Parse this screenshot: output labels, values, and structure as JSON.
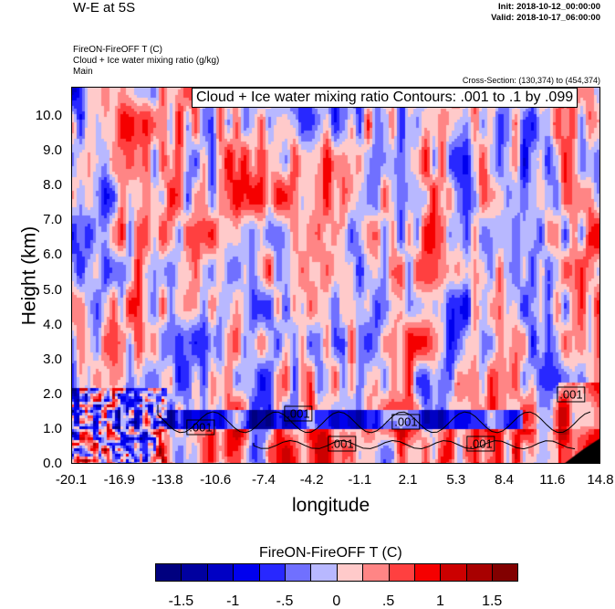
{
  "header": {
    "title": "W-E at 5S",
    "init": "Init: 2018-10-12_00:00:00",
    "valid": "Valid: 2018-10-17_06:00:00",
    "fields": [
      "FireON-FireOFF T   (C)",
      "Cloud + Ice water mixing ratio   (g/kg)",
      "Main"
    ],
    "cross_section": "Cross-Section: (130,374) to (454,374)"
  },
  "chart_data": {
    "type": "heatmap",
    "contour_title": "Cloud + Ice water mixing ratio Contours: .001 to .1 by .099",
    "xlabel": "longitude",
    "ylabel": "Height (km)",
    "xlim": [
      -20.1,
      14.8
    ],
    "ylim": [
      0,
      10.84
    ],
    "xticks": [
      "-20.1",
      "-16.9",
      "-13.8",
      "-10.6",
      "-7.4",
      "-4.2",
      "-1.1",
      "2.1",
      "5.3",
      "8.4",
      "11.6",
      "14.8"
    ],
    "yticks": [
      "0.0",
      "1.0",
      "2.0",
      "3.0",
      "4.0",
      "5.0",
      "6.0",
      "7.0",
      "8.0",
      "9.0",
      "10.0"
    ],
    "contour_labels": [
      {
        "text": ".001",
        "lon": -11.56,
        "h": 1.05
      },
      {
        "text": ".001",
        "lon": -5.12,
        "h": 1.44
      },
      {
        "text": ".001",
        "lon": 1.98,
        "h": 1.21
      },
      {
        "text": ".001",
        "lon": -2.23,
        "h": 0.58
      },
      {
        "text": ".001",
        "lon": 6.92,
        "h": 0.58
      },
      {
        "text": ".001",
        "lon": 12.87,
        "h": 2.0
      }
    ],
    "colorbar": {
      "title": "FireON-FireOFF T  (C)",
      "levels": [
        -1.5,
        -1.25,
        -1,
        -0.75,
        -0.5,
        -0.25,
        0,
        0.25,
        0.5,
        0.75,
        1,
        1.25,
        1.5
      ],
      "labels": [
        "-1.5",
        "-1",
        "-.5",
        "0",
        ".5",
        "1",
        "1.5"
      ],
      "colors": [
        "#00007f",
        "#00009f",
        "#0000c4",
        "#0000ee",
        "#2828ff",
        "#7070ff",
        "#b8b8ff",
        "#ffcaca",
        "#ff8585",
        "#ff4040",
        "#f50000",
        "#cc0000",
        "#a80000",
        "#820000"
      ]
    }
  }
}
